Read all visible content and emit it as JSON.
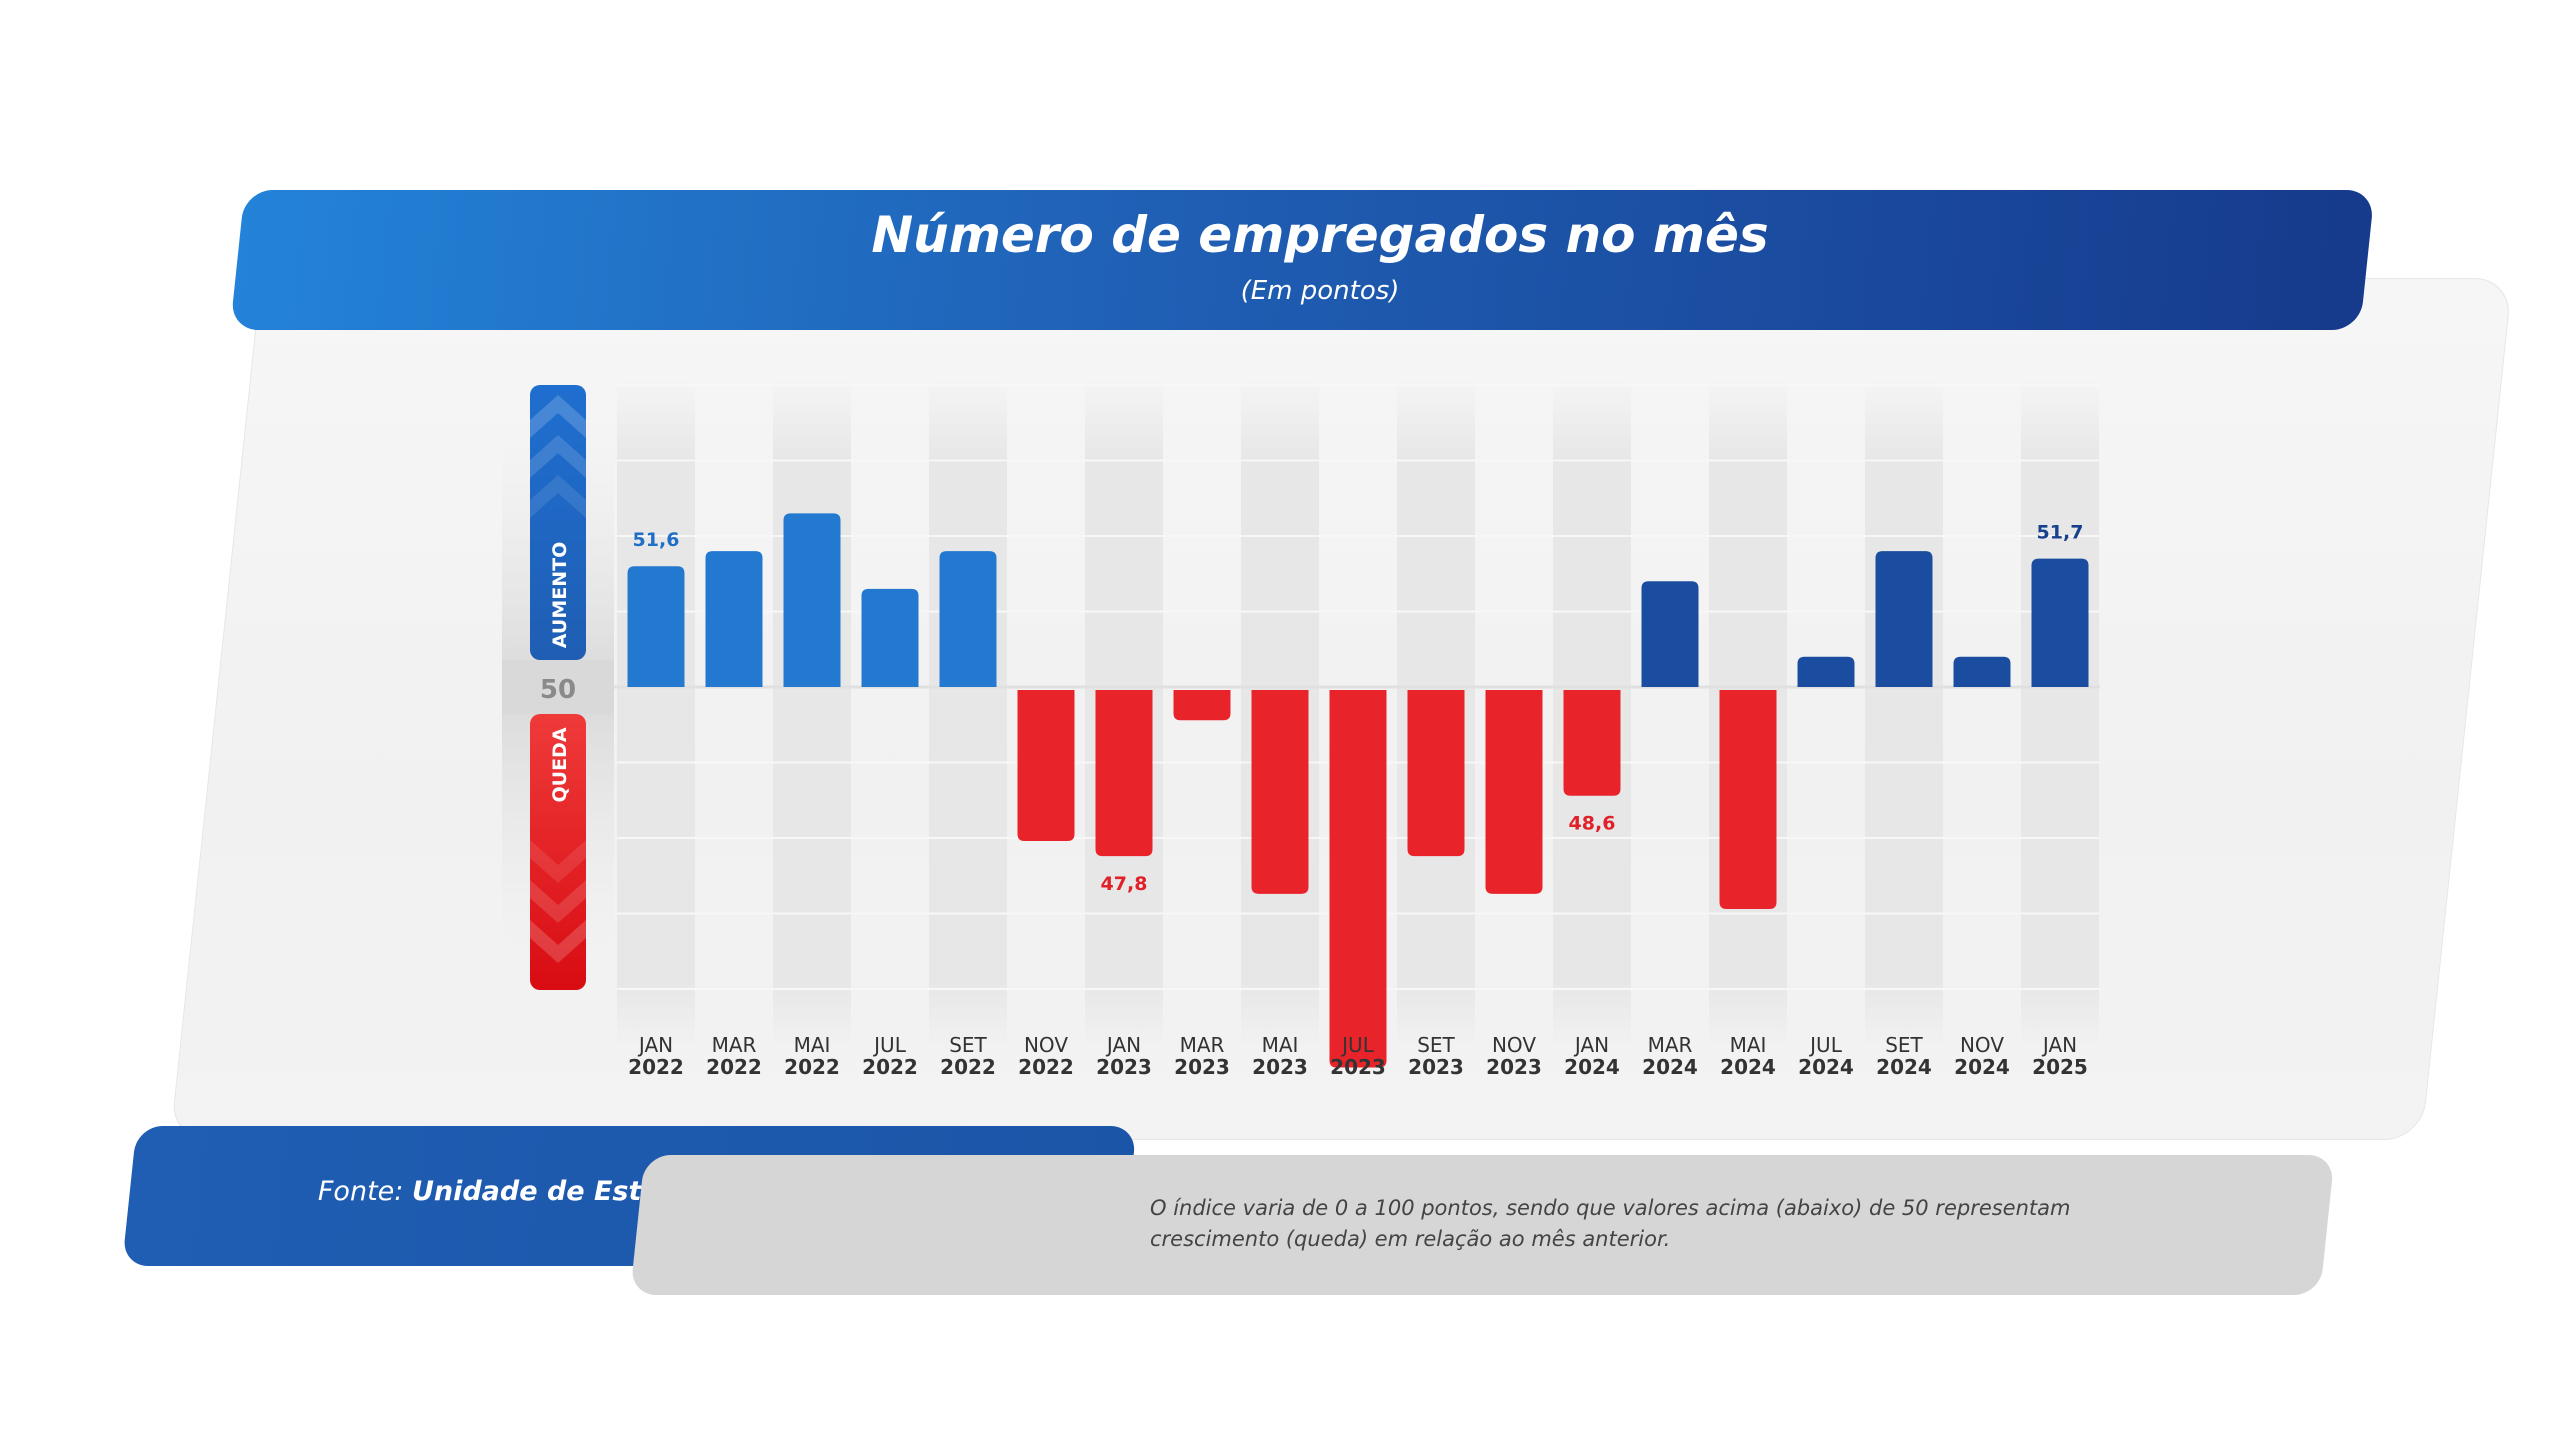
{
  "header": {
    "title": "Número de empregados no mês",
    "subtitle": "(Em pontos)"
  },
  "indicator": {
    "up_label": "AUMENTO",
    "down_label": "QUEDA",
    "baseline_label": "50"
  },
  "footer": {
    "source_prefix": "Fonte: ",
    "source_name": "Unidade de Estudos Econômicos - FIERGS",
    "note": "O índice varia de 0 a 100 pontos, sendo que valores acima (abaixo) de 50 representam crescimento (queda) em relação ao mês anterior."
  },
  "colors": {
    "up_light": "#2379d0",
    "up_dark": "#1a4da0",
    "down": "#e8242a",
    "label_up_light": "#1f6fc6",
    "label_up_dark": "#17408f",
    "label_down": "#e02128",
    "axis_text": "#333333"
  },
  "chart_data": {
    "type": "bar",
    "baseline": 50,
    "categories": [
      [
        "JAN",
        "2022"
      ],
      [
        "MAR",
        "2022"
      ],
      [
        "MAI",
        "2022"
      ],
      [
        "JUL",
        "2022"
      ],
      [
        "SET",
        "2022"
      ],
      [
        "NOV",
        "2022"
      ],
      [
        "JAN",
        "2023"
      ],
      [
        "MAR",
        "2023"
      ],
      [
        "MAI",
        "2023"
      ],
      [
        "JUL",
        "2023"
      ],
      [
        "SET",
        "2023"
      ],
      [
        "NOV",
        "2023"
      ],
      [
        "JAN",
        "2024"
      ],
      [
        "MAR",
        "2024"
      ],
      [
        "MAI",
        "2024"
      ],
      [
        "JUL",
        "2024"
      ],
      [
        "SET",
        "2024"
      ],
      [
        "NOV",
        "2024"
      ],
      [
        "JAN",
        "2025"
      ]
    ],
    "values": [
      51.6,
      51.8,
      52.3,
      51.3,
      51.8,
      48.0,
      47.8,
      49.6,
      47.3,
      45.0,
      47.8,
      47.3,
      48.6,
      51.4,
      47.1,
      50.4,
      51.8,
      50.4,
      51.7
    ],
    "data_labels": [
      "51,6",
      "",
      "",
      "",
      "",
      "",
      "47,8",
      "",
      "",
      "",
      "",
      "",
      "48,6",
      "",
      "",
      "",
      "",
      "",
      "51,7"
    ],
    "ylim": [
      42,
      54
    ],
    "grid": true
  }
}
